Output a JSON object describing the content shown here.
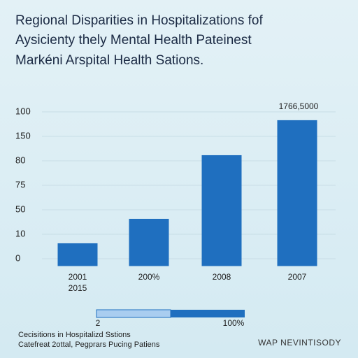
{
  "chart_data": {
    "type": "bar",
    "title_lines": [
      "Regional Disparities in Hospitalizations fof",
      "Aysicienty thely Mental Health Pateinest",
      "Markéni Arspital Health Sations."
    ],
    "categories": [
      "2001 2015",
      "200%",
      "2008",
      "2007"
    ],
    "values": [
      0.63,
      1.63,
      4.23,
      5.66
    ],
    "color": "#1f6fbf",
    "annotation": "1766,5000",
    "ylim": [
      -0.3,
      6.3
    ],
    "yticks": [
      {
        "value": 0,
        "label": "0"
      },
      {
        "value": 1,
        "label": "10"
      },
      {
        "value": 2,
        "label": "50"
      },
      {
        "value": 3,
        "label": "75"
      },
      {
        "value": 4,
        "label": "80"
      },
      {
        "value": 5,
        "label": "150"
      },
      {
        "value": 6,
        "label": "100"
      }
    ],
    "grid": true,
    "progress": {
      "start_label": "2",
      "end_label": "100%",
      "value": 50
    },
    "footer_lines": [
      "Cecisitions in Hospitalizd Sstions",
      "Catefreat 2ottal, Pegprars Pucing Patiens"
    ],
    "footer_right": "WAP NEVINTISODY"
  }
}
